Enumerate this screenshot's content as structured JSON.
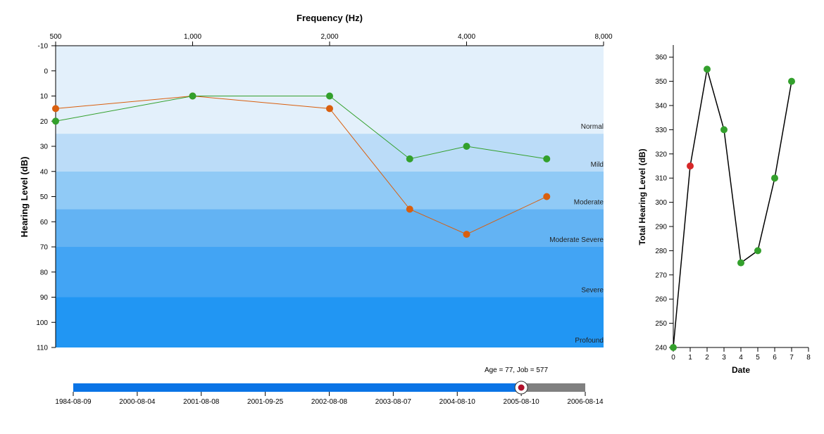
{
  "audiogram": {
    "chart_data": {
      "type": "line",
      "title": "",
      "xlabel": "Frequency (Hz)",
      "ylabel": "Hearing Level (dB)",
      "x_ticks": [
        "500",
        "1,000",
        "2,000",
        "4,000",
        "8,000"
      ],
      "x_tick_values": [
        500,
        1000,
        2000,
        4000,
        8000
      ],
      "x_scale": "log",
      "xlim": [
        500,
        8000
      ],
      "y_ticks": [
        "-10",
        "0",
        "10",
        "20",
        "30",
        "40",
        "50",
        "60",
        "70",
        "80",
        "90",
        "100",
        "110"
      ],
      "ylim": [
        -10,
        110
      ],
      "y_inverted": true,
      "bands": [
        {
          "label": "Normal",
          "from": -10,
          "to": 25,
          "color": "#e3f0fb"
        },
        {
          "label": "Mild",
          "from": 25,
          "to": 40,
          "color": "#bbdcf8"
        },
        {
          "label": "Moderate",
          "from": 40,
          "to": 55,
          "color": "#90caf6"
        },
        {
          "label": "Moderate Severe",
          "from": 55,
          "to": 70,
          "color": "#63b3f3"
        },
        {
          "label": "Severe",
          "from": 70,
          "to": 90,
          "color": "#42a4f4"
        },
        {
          "label": "Profound",
          "from": 90,
          "to": 110,
          "color": "#2196f3"
        }
      ],
      "series": [
        {
          "color": "#d95f0e",
          "x": [
            500,
            1000,
            2000,
            3000,
            4000,
            6000
          ],
          "values": [
            15,
            10,
            15,
            55,
            65,
            50
          ]
        },
        {
          "color": "#33a02c",
          "x": [
            500,
            1000,
            2000,
            3000,
            4000,
            6000
          ],
          "values": [
            20,
            10,
            10,
            35,
            30,
            35
          ]
        }
      ]
    }
  },
  "timeline": {
    "label": "Age = 77, Job = 577",
    "dates": [
      "1984-08-09",
      "2000-08-04",
      "2001-08-08",
      "2001-09-25",
      "2002-08-08",
      "2003-08-07",
      "2004-08-10",
      "2005-08-10",
      "2006-08-14"
    ],
    "selected_index": 7,
    "fill_color": "#0a74e6",
    "rest_color": "#808080",
    "handle_color": "#b0102b"
  },
  "total_chart": {
    "chart_data": {
      "type": "line",
      "title": "",
      "xlabel": "Date",
      "ylabel": "Total Hearing Level (dB)",
      "x_ticks": [
        "0",
        "1",
        "2",
        "3",
        "4",
        "5",
        "6",
        "7",
        "8"
      ],
      "xlim": [
        0,
        8
      ],
      "y_ticks": [
        "240",
        "250",
        "260",
        "270",
        "280",
        "290",
        "300",
        "310",
        "320",
        "330",
        "340",
        "350",
        "360"
      ],
      "ylim": [
        240,
        365
      ],
      "line_color": "#000000",
      "x": [
        0,
        1,
        2,
        3,
        4,
        5,
        6,
        7
      ],
      "values": [
        240,
        315,
        355,
        330,
        275,
        280,
        310,
        350
      ],
      "point_colors": [
        "#33a02c",
        "#d62728",
        "#33a02c",
        "#33a02c",
        "#33a02c",
        "#33a02c",
        "#33a02c",
        "#33a02c"
      ]
    }
  }
}
